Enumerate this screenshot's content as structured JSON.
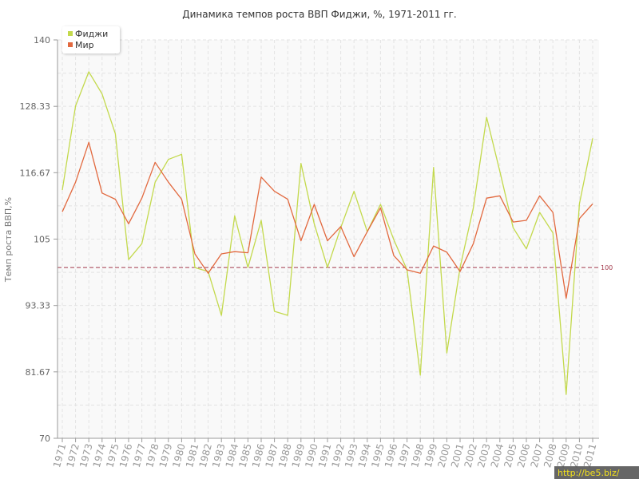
{
  "chart_data": {
    "type": "line",
    "title": "Динамика темпов роста ВВП Фиджи, %, 1971-2011 гг.",
    "ylabel": "Темп роста ВВП,%",
    "x": [
      1971,
      1972,
      1973,
      1974,
      1975,
      1976,
      1977,
      1978,
      1979,
      1980,
      1981,
      1982,
      1983,
      1984,
      1985,
      1986,
      1987,
      1988,
      1989,
      1990,
      1991,
      1992,
      1993,
      1994,
      1995,
      1996,
      1997,
      1998,
      1999,
      2000,
      2001,
      2002,
      2003,
      2004,
      2005,
      2006,
      2007,
      2008,
      2009,
      2010,
      2011
    ],
    "y_ticks": [
      140,
      128.33,
      116.67,
      105,
      93.33,
      81.67,
      70
    ],
    "ylim": [
      70,
      140
    ],
    "grid": true,
    "legend_position": "top-left",
    "series": [
      {
        "name": "Фиджи",
        "color": "#c3d94c",
        "values": [
          113.6,
          128.4,
          134.4,
          130.5,
          123.5,
          101.4,
          104.2,
          115,
          119,
          119.9,
          100,
          99.3,
          91.6,
          109.1,
          100,
          108.3,
          92.3,
          91.6,
          118.3,
          107.7,
          100,
          107,
          113.4,
          106.3,
          111.1,
          104.9,
          99.6,
          81.1,
          117.6,
          85,
          100,
          110.5,
          126.4,
          116.9,
          107,
          103.3,
          109.7,
          106.1,
          77.7,
          111.2,
          122.7
        ]
      },
      {
        "name": "Мир",
        "color": "#e2693f",
        "values": [
          109.8,
          115,
          122,
          113.1,
          112,
          107.7,
          112.2,
          118.5,
          115,
          112,
          102.4,
          99,
          102.4,
          102.8,
          102.6,
          115.9,
          113.4,
          112,
          104.7,
          111.1,
          104.7,
          107.2,
          101.9,
          106.3,
          110.5,
          102.1,
          99.6,
          99,
          103.8,
          102.7,
          99.3,
          104.2,
          112.2,
          112.6,
          108,
          108.3,
          112.6,
          109.7,
          94.6,
          108.6,
          111.2
        ]
      }
    ],
    "reference_line": {
      "value": 100,
      "label": "100",
      "color": "#a33a4c",
      "dashed": true
    }
  },
  "watermark": {
    "text": "http://be5.biz/",
    "text_color": "#f2e01c",
    "background_color": "#4b4b4b"
  }
}
